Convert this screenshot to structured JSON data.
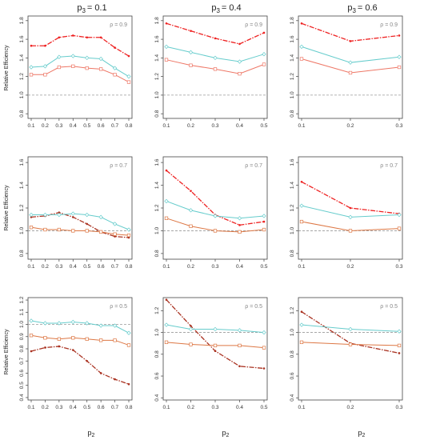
{
  "figure": {
    "column_titles": [
      "p",
      "p",
      "p"
    ],
    "column_title_subs": [
      "3",
      "3",
      "3"
    ],
    "column_title_values": [
      "= 0.1",
      "= 0.4",
      "= 0.6"
    ],
    "ylabel": "Relative Efficiency",
    "xlabel_main": "p",
    "xlabel_sub": "2"
  },
  "colors": {
    "red": "#ee2222",
    "cyan": "#66cccc",
    "salmon": "#ee7766",
    "brown": "#aa3322",
    "orange": "#dd7744",
    "ref_line": "#999999",
    "axis": "#444444",
    "rho_label": "#888888"
  },
  "chart_data": [
    {
      "type": "line",
      "row": 0,
      "col": 0,
      "annotation": "ρ = 0.9",
      "x": [
        0.1,
        0.2,
        0.3,
        0.4,
        0.5,
        0.6,
        0.7,
        0.8
      ],
      "xticks": [
        "0.1",
        "0.2",
        "0.3",
        "0.4",
        "0.5",
        "0.6",
        "0.7",
        "0.8"
      ],
      "ylim": [
        0.75,
        1.85
      ],
      "yticks": [
        "0.8",
        "1.0",
        "1.2",
        "1.4",
        "1.6",
        "1.8"
      ],
      "ref_line": 1.0,
      "series": [
        {
          "color": "red",
          "marker": "dot",
          "dashed": true,
          "values": [
            1.53,
            1.53,
            1.62,
            1.64,
            1.62,
            1.62,
            1.51,
            1.42
          ]
        },
        {
          "color": "cyan",
          "marker": "diamond",
          "values": [
            1.3,
            1.31,
            1.41,
            1.42,
            1.4,
            1.39,
            1.29,
            1.2
          ]
        },
        {
          "color": "salmon",
          "marker": "square",
          "values": [
            1.22,
            1.22,
            1.3,
            1.31,
            1.29,
            1.28,
            1.22,
            1.14
          ]
        }
      ]
    },
    {
      "type": "line",
      "row": 0,
      "col": 1,
      "annotation": "ρ = 0.9",
      "x": [
        0.1,
        0.2,
        0.3,
        0.4,
        0.5
      ],
      "xticks": [
        "0.1",
        "0.2",
        "0.3",
        "0.4",
        "0.5"
      ],
      "ylim": [
        0.75,
        1.85
      ],
      "yticks": [
        "0.8",
        "1.0",
        "1.2",
        "1.4",
        "1.6",
        "1.8"
      ],
      "ref_line": 1.0,
      "series": [
        {
          "color": "red",
          "marker": "dot",
          "dashed": true,
          "values": [
            1.77,
            1.69,
            1.61,
            1.55,
            1.67
          ]
        },
        {
          "color": "cyan",
          "marker": "diamond",
          "values": [
            1.52,
            1.46,
            1.4,
            1.36,
            1.44
          ]
        },
        {
          "color": "salmon",
          "marker": "square",
          "values": [
            1.38,
            1.32,
            1.28,
            1.23,
            1.33
          ]
        }
      ]
    },
    {
      "type": "line",
      "row": 0,
      "col": 2,
      "annotation": "ρ = 0.9",
      "x": [
        0.1,
        0.2,
        0.3
      ],
      "xticks": [
        "0.1",
        "0.2",
        "0.3"
      ],
      "ylim": [
        0.75,
        1.85
      ],
      "yticks": [
        "0.8",
        "1.0",
        "1.2",
        "1.4",
        "1.6",
        "1.8"
      ],
      "ref_line": 1.0,
      "series": [
        {
          "color": "red",
          "marker": "dot",
          "dashed": true,
          "values": [
            1.77,
            1.58,
            1.64
          ]
        },
        {
          "color": "cyan",
          "marker": "diamond",
          "values": [
            1.52,
            1.35,
            1.41
          ]
        },
        {
          "color": "salmon",
          "marker": "square",
          "values": [
            1.39,
            1.24,
            1.3
          ]
        }
      ]
    },
    {
      "type": "line",
      "row": 1,
      "col": 0,
      "annotation": "ρ = 0.7",
      "x": [
        0.1,
        0.2,
        0.3,
        0.4,
        0.5,
        0.6,
        0.7,
        0.8
      ],
      "xticks": [
        "0.1",
        "0.2",
        "0.3",
        "0.4",
        "0.5",
        "0.6",
        "0.7",
        "0.8"
      ],
      "ylim": [
        0.75,
        1.65
      ],
      "yticks": [
        "0.8",
        "1.0",
        "1.2",
        "1.4",
        "1.6"
      ],
      "ref_line": 1.0,
      "series": [
        {
          "color": "brown",
          "marker": "dot",
          "dashed": true,
          "values": [
            1.12,
            1.13,
            1.16,
            1.12,
            1.06,
            0.99,
            0.95,
            0.94
          ]
        },
        {
          "color": "cyan",
          "marker": "diamond",
          "values": [
            1.14,
            1.14,
            1.14,
            1.15,
            1.14,
            1.12,
            1.06,
            1.01
          ]
        },
        {
          "color": "orange",
          "marker": "square",
          "values": [
            1.03,
            1.01,
            1.01,
            1.0,
            1.0,
            0.99,
            0.97,
            0.96
          ]
        }
      ]
    },
    {
      "type": "line",
      "row": 1,
      "col": 1,
      "annotation": "ρ = 0.7",
      "x": [
        0.1,
        0.2,
        0.3,
        0.4,
        0.5
      ],
      "xticks": [
        "0.1",
        "0.2",
        "0.3",
        "0.4",
        "0.5"
      ],
      "ylim": [
        0.75,
        1.65
      ],
      "yticks": [
        "0.8",
        "1.0",
        "1.2",
        "1.4",
        "1.6"
      ],
      "ref_line": 1.0,
      "series": [
        {
          "color": "red",
          "marker": "dot",
          "dashed": true,
          "values": [
            1.53,
            1.35,
            1.14,
            1.05,
            1.08
          ]
        },
        {
          "color": "cyan",
          "marker": "diamond",
          "values": [
            1.26,
            1.18,
            1.13,
            1.11,
            1.13
          ]
        },
        {
          "color": "orange",
          "marker": "square",
          "values": [
            1.11,
            1.04,
            1.0,
            0.99,
            1.01
          ]
        }
      ]
    },
    {
      "type": "line",
      "row": 1,
      "col": 2,
      "annotation": "ρ = 0.7",
      "x": [
        0.1,
        0.2,
        0.3
      ],
      "xticks": [
        "0.1",
        "0.2",
        "0.3"
      ],
      "ylim": [
        0.75,
        1.65
      ],
      "yticks": [
        "0.8",
        "1.0",
        "1.2",
        "1.4",
        "1.6"
      ],
      "ref_line": 1.0,
      "series": [
        {
          "color": "red",
          "marker": "dot",
          "dashed": true,
          "values": [
            1.43,
            1.2,
            1.15
          ]
        },
        {
          "color": "cyan",
          "marker": "diamond",
          "values": [
            1.22,
            1.12,
            1.14
          ]
        },
        {
          "color": "orange",
          "marker": "square",
          "values": [
            1.08,
            1.0,
            1.02
          ]
        }
      ]
    },
    {
      "type": "line",
      "row": 2,
      "col": 0,
      "annotation": "ρ = 0.5",
      "x": [
        0.1,
        0.2,
        0.3,
        0.4,
        0.5,
        0.6,
        0.7,
        0.8
      ],
      "xticks": [
        "0.1",
        "0.2",
        "0.3",
        "0.4",
        "0.5",
        "0.6",
        "0.7",
        "0.8"
      ],
      "ylim": [
        0.38,
        1.22
      ],
      "yticks": [
        "0.4",
        "0.5",
        "0.6",
        "0.7",
        "0.8",
        "0.9",
        "1.0",
        "1.1",
        "1.2"
      ],
      "ref_line": 1.0,
      "series": [
        {
          "color": "brown",
          "marker": "dot",
          "dashed": true,
          "values": [
            0.78,
            0.81,
            0.82,
            0.79,
            0.7,
            0.6,
            0.55,
            0.51
          ]
        },
        {
          "color": "cyan",
          "marker": "diamond",
          "values": [
            1.03,
            1.01,
            1.01,
            1.02,
            1.01,
            0.99,
            0.99,
            0.93
          ]
        },
        {
          "color": "orange",
          "marker": "square",
          "values": [
            0.91,
            0.89,
            0.88,
            0.89,
            0.88,
            0.87,
            0.87,
            0.83
          ]
        }
      ]
    },
    {
      "type": "line",
      "row": 2,
      "col": 1,
      "annotation": "ρ = 0.5",
      "x": [
        0.1,
        0.2,
        0.3,
        0.4,
        0.5
      ],
      "xticks": [
        "0.1",
        "0.2",
        "0.3",
        "0.4",
        "0.5"
      ],
      "ylim": [
        0.38,
        1.32
      ],
      "yticks": [
        "0.4",
        "0.6",
        "0.8",
        "1.0",
        "1.2"
      ],
      "ref_line": 1.0,
      "series": [
        {
          "color": "brown",
          "marker": "dot",
          "dashed": true,
          "values": [
            1.3,
            1.06,
            0.83,
            0.69,
            0.67
          ]
        },
        {
          "color": "cyan",
          "marker": "diamond",
          "values": [
            1.07,
            1.03,
            1.03,
            1.02,
            1.0
          ]
        },
        {
          "color": "orange",
          "marker": "square",
          "values": [
            0.91,
            0.89,
            0.88,
            0.88,
            0.86
          ]
        }
      ]
    },
    {
      "type": "line",
      "row": 2,
      "col": 2,
      "annotation": "ρ = 0.5",
      "x": [
        0.1,
        0.2,
        0.3
      ],
      "xticks": [
        "0.1",
        "0.2",
        "0.3"
      ],
      "ylim": [
        0.38,
        1.32
      ],
      "yticks": [
        "0.4",
        "0.6",
        "0.8",
        "1.0",
        "1.2"
      ],
      "ref_line": 1.0,
      "series": [
        {
          "color": "brown",
          "marker": "dot",
          "dashed": true,
          "values": [
            1.19,
            0.9,
            0.81
          ]
        },
        {
          "color": "cyan",
          "marker": "diamond",
          "values": [
            1.07,
            1.03,
            1.01
          ]
        },
        {
          "color": "orange",
          "marker": "square",
          "values": [
            0.91,
            0.89,
            0.88
          ]
        }
      ]
    }
  ]
}
